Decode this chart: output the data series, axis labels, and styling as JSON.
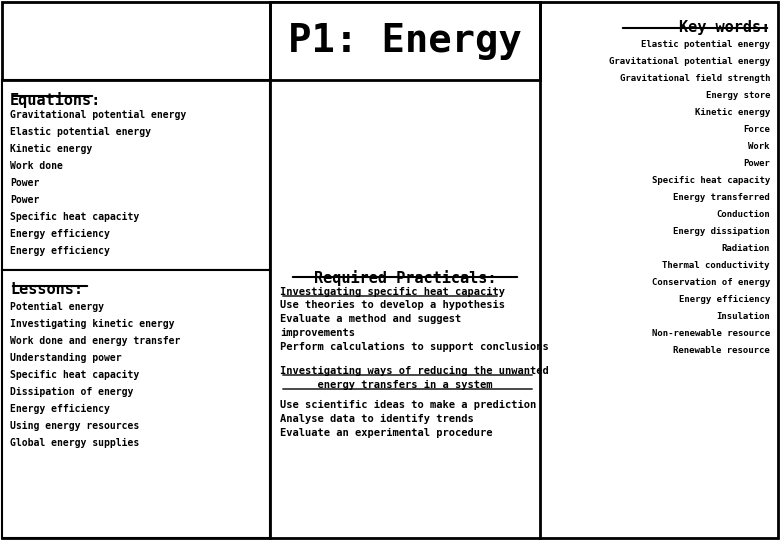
{
  "title": "P1: Energy",
  "bg_color": "#ffffff",
  "left_panel": {
    "equations_header": "Equations:",
    "equations_items": [
      "Gravitational potential energy",
      "Elastic potential energy",
      "Kinetic energy",
      "Work done",
      "Power",
      "Power",
      "Specific heat capacity",
      "Energy efficiency",
      "Energy efficiency"
    ],
    "lessons_header": "Lessons:",
    "lessons_items": [
      "Potential energy",
      "Investigating kinetic energy",
      "Work done and energy transfer",
      "Understanding power",
      "Specific heat capacity",
      "Dissipation of energy",
      "Energy efficiency",
      "Using energy resources",
      "Global energy supplies"
    ]
  },
  "middle_panel": {
    "practicals_header": "Required Practicals:",
    "practical1_title": "Investigating specific heat capacity",
    "practical1_items": [
      "Use theories to develop a hypothesis",
      "Evaluate a method and suggest",
      "improvements",
      "Perform calculations to support conclusions"
    ],
    "practical2_title_lines": [
      "Investigating ways of reducing the unwanted",
      "      energy transfers in a system"
    ],
    "practical2_items": [
      "Use scientific ideas to make a prediction",
      "Analyse data to identify trends",
      "Evaluate an experimental procedure"
    ]
  },
  "right_panel": {
    "keywords_header": "Key words:",
    "keywords_items": [
      "Elastic potential energy",
      "Gravitational potential energy",
      "Gravitational field strength",
      "Energy store",
      "Kinetic energy",
      "Force",
      "Work",
      "Power",
      "Specific heat capacity",
      "Energy transferred",
      "Conduction",
      "Energy dissipation",
      "Radiation",
      "Thermal conductivity",
      "Conservation of energy",
      "Energy efficiency",
      "Insulation",
      "Non-renewable resource",
      "Renewable resource"
    ]
  },
  "border_color": "#000000",
  "header_color": "#000000",
  "text_color": "#000000",
  "title_bg": "#ffffff"
}
